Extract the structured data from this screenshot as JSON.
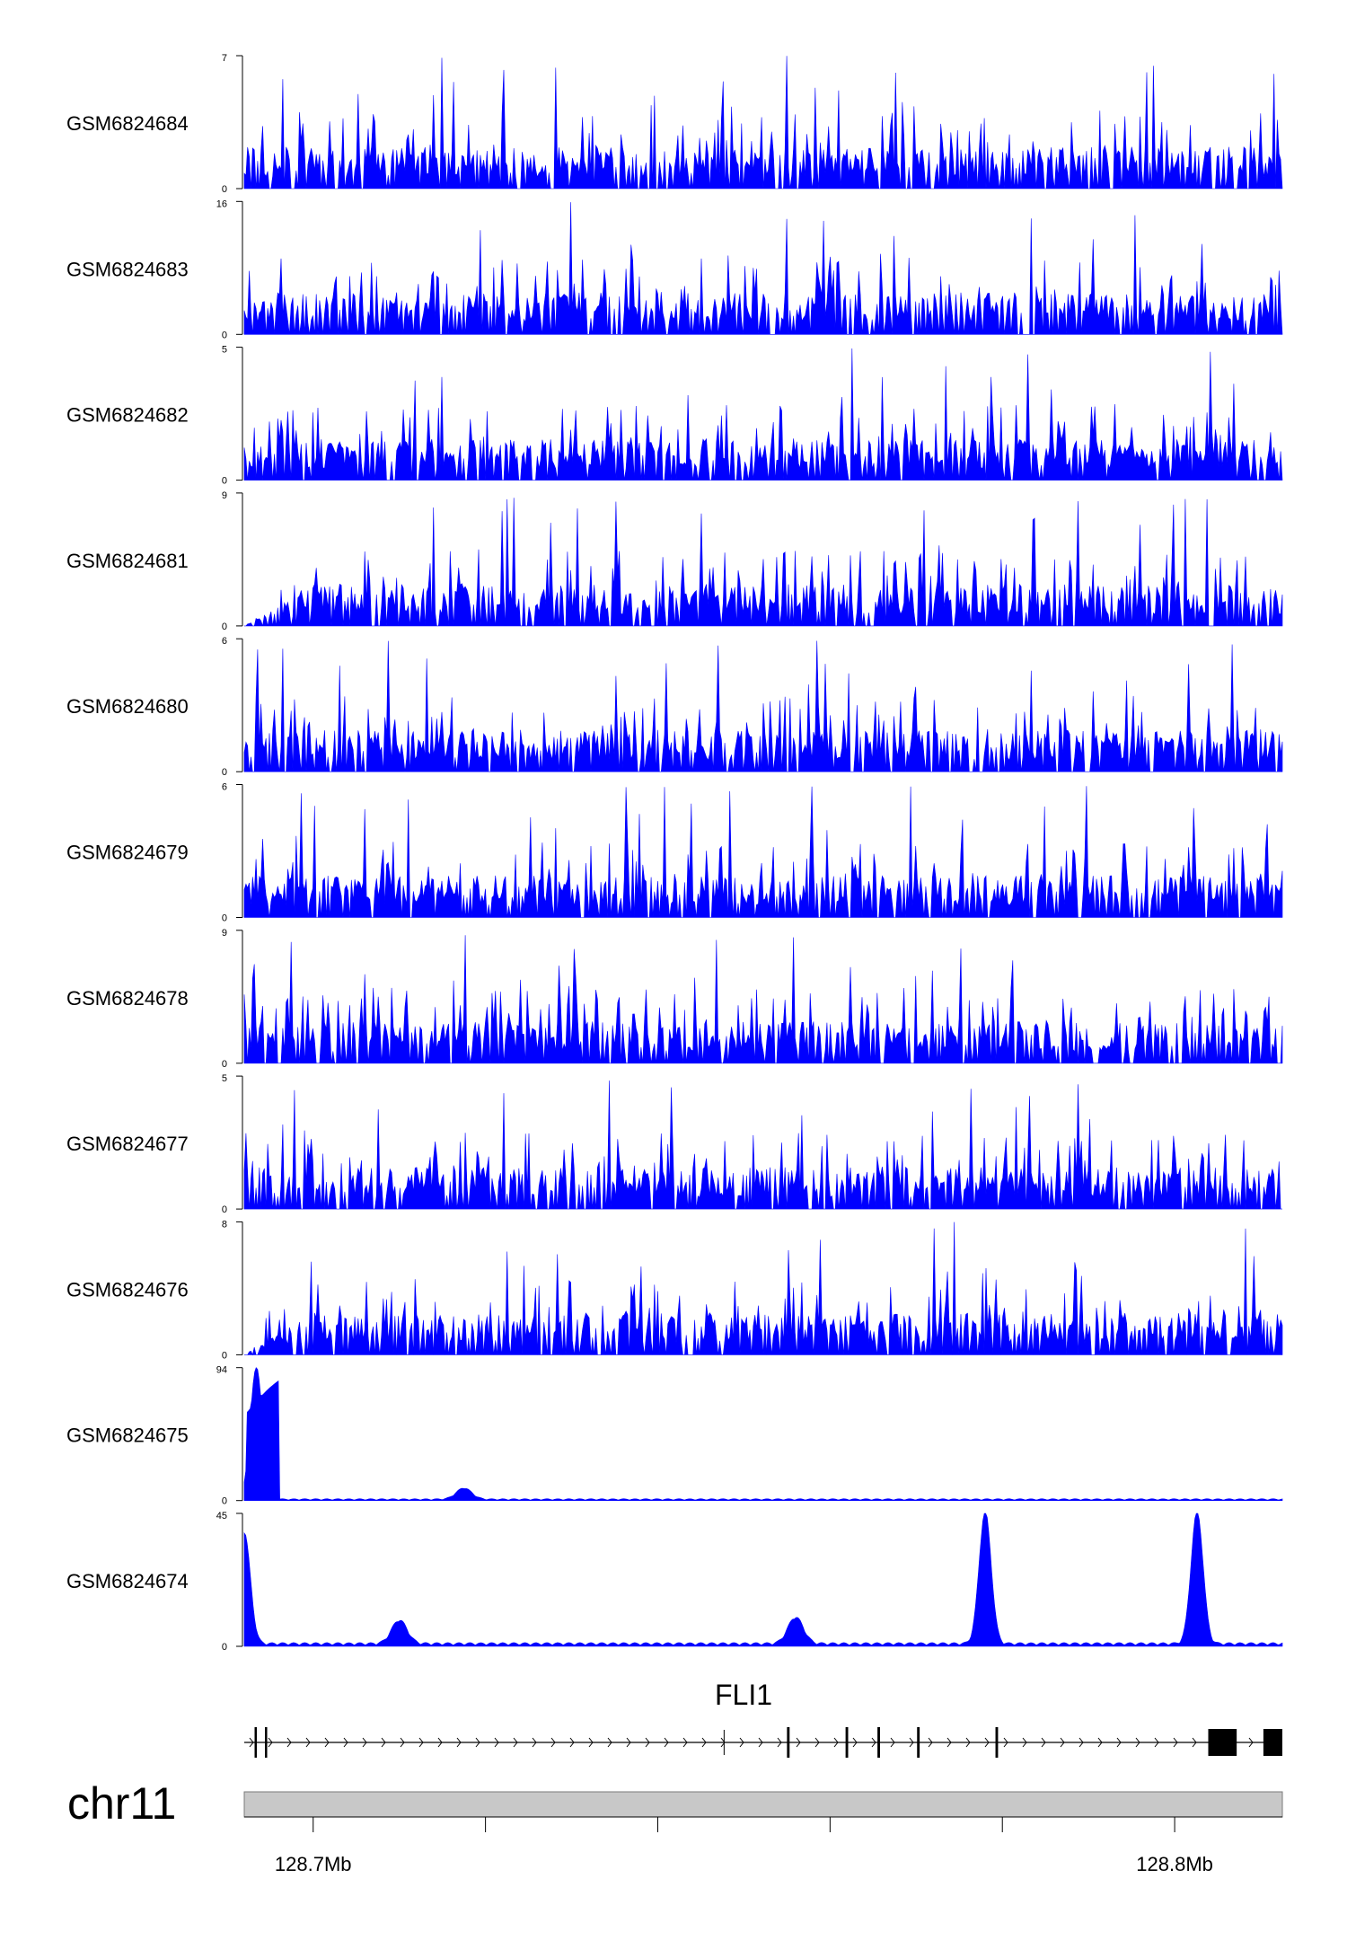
{
  "chart_data": {
    "type": "area",
    "color": "#0000ff",
    "tracks": [
      {
        "name": "GSM6824684",
        "ymax": 7,
        "ymin": 0,
        "shape": "noise"
      },
      {
        "name": "GSM6824683",
        "ymax": 16,
        "ymin": 0,
        "shape": "noise"
      },
      {
        "name": "GSM6824682",
        "ymax": 5,
        "ymin": 0,
        "shape": "noise"
      },
      {
        "name": "GSM6824681",
        "ymax": 9,
        "ymin": 0,
        "shape": "noise"
      },
      {
        "name": "GSM6824680",
        "ymax": 6,
        "ymin": 0,
        "shape": "noise"
      },
      {
        "name": "GSM6824679",
        "ymax": 6,
        "ymin": 0,
        "shape": "noise"
      },
      {
        "name": "GSM6824678",
        "ymax": 9,
        "ymin": 0,
        "shape": "noise"
      },
      {
        "name": "GSM6824677",
        "ymax": 5,
        "ymin": 0,
        "shape": "noise"
      },
      {
        "name": "GSM6824676",
        "ymax": 8,
        "ymin": 0,
        "shape": "noise"
      },
      {
        "name": "GSM6824675",
        "ymax": 94,
        "ymin": 0,
        "shape": "peak",
        "peaks": [
          {
            "x": 128.6934,
            "value": 94
          },
          {
            "x": 128.7175,
            "value": 8
          }
        ]
      },
      {
        "name": "GSM6824674",
        "ymax": 45,
        "ymin": 0,
        "shape": "peak",
        "peaks": [
          {
            "x": 128.692,
            "value": 38
          },
          {
            "x": 128.778,
            "value": 45
          },
          {
            "x": 128.8026,
            "value": 45
          },
          {
            "x": 128.71,
            "value": 8
          },
          {
            "x": 128.756,
            "value": 9
          }
        ]
      }
    ],
    "xlim": [
      128.692,
      128.8125
    ],
    "gene": {
      "name": "FLI1",
      "strand": "+",
      "exons": [
        {
          "start": 128.6932,
          "end": 128.6934
        },
        {
          "start": 128.6944,
          "end": 128.6946
        },
        {
          "start": 128.755,
          "end": 128.7553
        },
        {
          "start": 128.7618,
          "end": 128.7621
        },
        {
          "start": 128.7655,
          "end": 128.7658
        },
        {
          "start": 128.7701,
          "end": 128.7704
        },
        {
          "start": 128.7792,
          "end": 128.7795
        },
        {
          "start": 128.8039,
          "end": 128.8072
        },
        {
          "start": 128.8103,
          "end": 128.8125
        }
      ],
      "tss_marks": [
        128.7477
      ]
    },
    "axis": {
      "chromosome": "chr11",
      "ticks": [
        {
          "x": 128.7,
          "label": "128.7Mb"
        },
        {
          "x": 128.72,
          "label": ""
        },
        {
          "x": 128.74,
          "label": ""
        },
        {
          "x": 128.76,
          "label": ""
        },
        {
          "x": 128.78,
          "label": ""
        },
        {
          "x": 128.8,
          "label": "128.8Mb"
        }
      ]
    }
  }
}
